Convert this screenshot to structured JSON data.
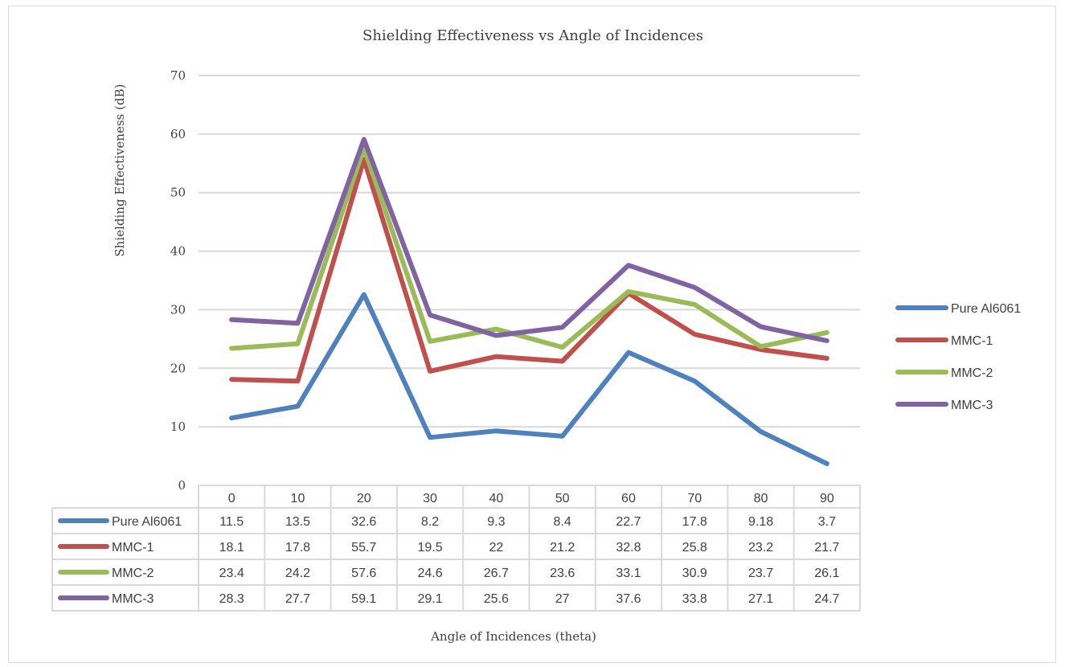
{
  "chart_data": {
    "type": "line",
    "title": "Shielding Effectiveness vs  Angle of Incidences",
    "xlabel": "Angle of Incidences (theta)",
    "ylabel": "Shielding Effectiveness (dB)",
    "ylim": [
      0,
      70
    ],
    "yticks": [
      0,
      10,
      20,
      30,
      40,
      50,
      60,
      70
    ],
    "grid": true,
    "legend_position": "right",
    "data_table": true,
    "categories": [
      "0",
      "10",
      "20",
      "30",
      "40",
      "50",
      "60",
      "70",
      "80",
      "90"
    ],
    "series": [
      {
        "name": "Pure Al6061",
        "color": "#4f81bd",
        "values": [
          11.5,
          13.5,
          32.6,
          8.2,
          9.3,
          8.4,
          22.7,
          17.8,
          9.18,
          3.7
        ]
      },
      {
        "name": "MMC-1",
        "color": "#c0504d",
        "values": [
          18.1,
          17.8,
          55.7,
          19.5,
          22,
          21.2,
          32.8,
          25.8,
          23.2,
          21.7
        ]
      },
      {
        "name": "MMC-2",
        "color": "#9bbb59",
        "values": [
          23.4,
          24.2,
          57.6,
          24.6,
          26.7,
          23.6,
          33.1,
          30.9,
          23.7,
          26.1
        ]
      },
      {
        "name": "MMC-3",
        "color": "#8064a2",
        "values": [
          28.3,
          27.7,
          59.1,
          29.1,
          25.6,
          27,
          37.6,
          33.8,
          27.1,
          24.7
        ]
      }
    ]
  }
}
